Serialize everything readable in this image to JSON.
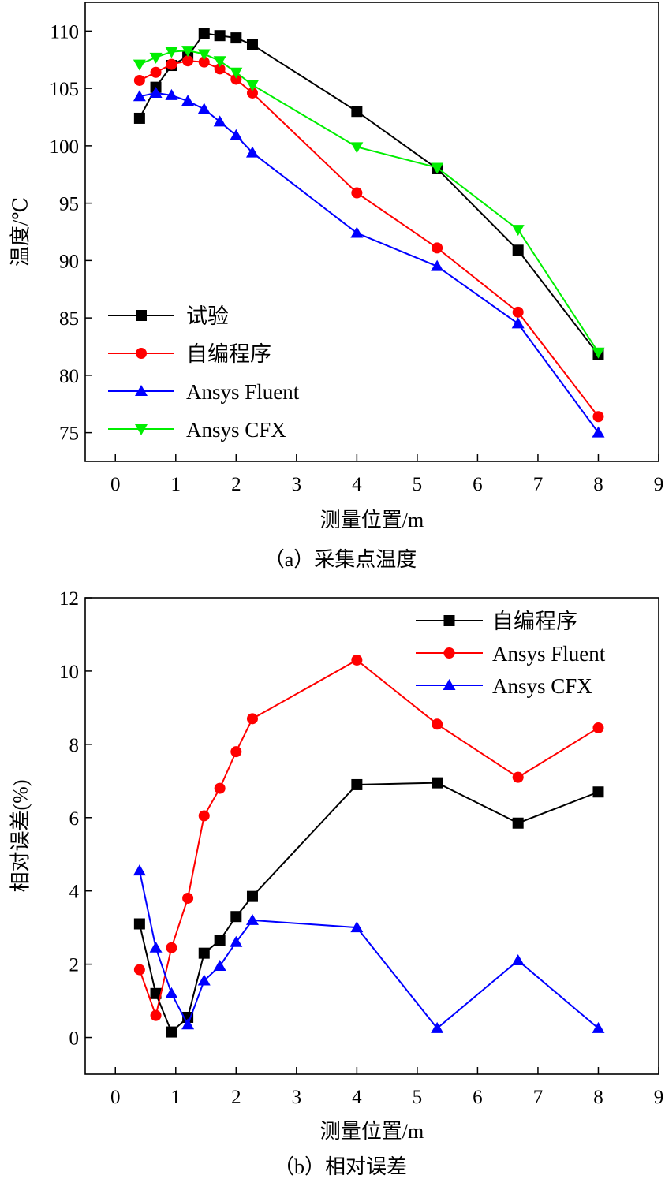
{
  "chart_data": [
    {
      "type": "line",
      "caption": "（a）采集点温度",
      "xlabel": "测量位置/m",
      "ylabel": "温度/℃",
      "xlim": [
        -0.5,
        9
      ],
      "ylim": [
        72.5,
        112.5
      ],
      "xticks": [
        "0",
        "1",
        "2",
        "3",
        "4",
        "5",
        "6",
        "7",
        "8",
        "9"
      ],
      "yticks": [
        "75",
        "80",
        "85",
        "90",
        "95",
        "100",
        "105",
        "110"
      ],
      "grid": false,
      "legend_position": "bottom-left",
      "x": [
        0.4,
        0.67,
        0.93,
        1.2,
        1.47,
        1.73,
        2.0,
        2.27,
        4.0,
        5.33,
        6.67,
        8.0
      ],
      "series": [
        {
          "name": "试验",
          "color": "#000000",
          "marker": "square",
          "values": [
            102.4,
            105.1,
            107.0,
            107.8,
            109.8,
            109.6,
            109.4,
            108.8,
            103.0,
            98.0,
            90.9,
            81.8
          ]
        },
        {
          "name": "自编程序",
          "color": "#ff0000",
          "marker": "circle",
          "values": [
            105.7,
            106.4,
            107.1,
            107.4,
            107.3,
            106.7,
            105.8,
            104.6,
            95.9,
            91.1,
            85.5,
            76.4
          ]
        },
        {
          "name": "Ansys Fluent",
          "color": "#0000ff",
          "marker": "triangle-up",
          "values": [
            104.3,
            104.6,
            104.4,
            103.9,
            103.2,
            102.1,
            100.9,
            99.4,
            92.4,
            89.5,
            84.5,
            75.0
          ]
        },
        {
          "name": "Ansys CFX",
          "color": "#00ee00",
          "marker": "triangle-down",
          "values": [
            107.1,
            107.7,
            108.2,
            108.3,
            108.0,
            107.4,
            106.4,
            105.3,
            99.9,
            98.1,
            92.7,
            82.0
          ]
        }
      ]
    },
    {
      "type": "line",
      "caption": "（b）相对误差",
      "xlabel": "测量位置/m",
      "ylabel": "相对误差(%)",
      "xlim": [
        -0.5,
        9
      ],
      "ylim": [
        -1,
        12
      ],
      "xticks": [
        "0",
        "1",
        "2",
        "3",
        "4",
        "5",
        "6",
        "7",
        "8",
        "9"
      ],
      "yticks": [
        "0",
        "2",
        "4",
        "6",
        "8",
        "10",
        "12"
      ],
      "grid": false,
      "legend_position": "top-right",
      "x": [
        0.4,
        0.67,
        0.93,
        1.2,
        1.47,
        1.73,
        2.0,
        2.27,
        4.0,
        5.33,
        6.67,
        8.0
      ],
      "series": [
        {
          "name": "自编程序",
          "color": "#000000",
          "marker": "square",
          "values": [
            3.1,
            1.2,
            0.15,
            0.55,
            2.3,
            2.65,
            3.3,
            3.85,
            6.9,
            6.95,
            5.85,
            6.7
          ]
        },
        {
          "name": "Ansys Fluent",
          "color": "#ff0000",
          "marker": "circle",
          "values": [
            1.85,
            0.6,
            2.45,
            3.8,
            6.05,
            6.8,
            7.8,
            8.7,
            10.3,
            8.55,
            7.1,
            8.45
          ]
        },
        {
          "name": "Ansys CFX",
          "color": "#0000ff",
          "marker": "triangle-up",
          "values": [
            4.55,
            2.45,
            1.2,
            0.35,
            1.55,
            1.95,
            2.6,
            3.2,
            3.0,
            0.25,
            2.1,
            0.25
          ]
        }
      ]
    }
  ]
}
